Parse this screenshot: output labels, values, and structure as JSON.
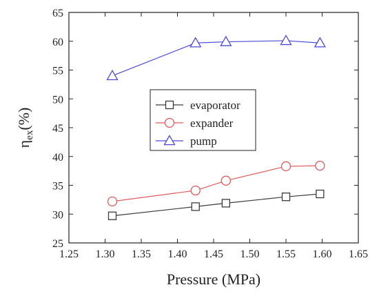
{
  "chart_data": {
    "type": "line",
    "xlabel": "Pressure (MPa)",
    "ylabel_main": "η",
    "ylabel_sub": "ex",
    "ylabel_suffix": "(%)",
    "xlim": [
      1.25,
      1.65
    ],
    "ylim": [
      25,
      65
    ],
    "xticks": [
      1.25,
      1.3,
      1.35,
      1.4,
      1.45,
      1.5,
      1.55,
      1.6,
      1.65
    ],
    "xtick_labels": [
      "1.25",
      "1.30",
      "1.35",
      "1.40",
      "1.45",
      "1.50",
      "1.55",
      "1.60",
      "1.65"
    ],
    "yticks": [
      25,
      30,
      35,
      40,
      45,
      50,
      55,
      60,
      65
    ],
    "ytick_labels": [
      "25",
      "30",
      "35",
      "40",
      "45",
      "50",
      "55",
      "60",
      "65"
    ],
    "grid": false,
    "legend_position": "center",
    "series": [
      {
        "name": "evaporator",
        "marker": "square",
        "color": "#3a3a3a",
        "x": [
          1.31,
          1.425,
          1.467,
          1.55,
          1.597
        ],
        "y": [
          29.7,
          31.3,
          31.9,
          33.0,
          33.5
        ]
      },
      {
        "name": "expander",
        "marker": "circle",
        "color": "#e05a5a",
        "x": [
          1.31,
          1.425,
          1.467,
          1.55,
          1.597
        ],
        "y": [
          32.2,
          34.1,
          35.8,
          38.3,
          38.4
        ]
      },
      {
        "name": "pump",
        "marker": "triangle",
        "color": "#4a4ad8",
        "x": [
          1.31,
          1.425,
          1.467,
          1.55,
          1.597
        ],
        "y": [
          54.0,
          59.7,
          59.9,
          60.1,
          59.7
        ]
      }
    ]
  }
}
